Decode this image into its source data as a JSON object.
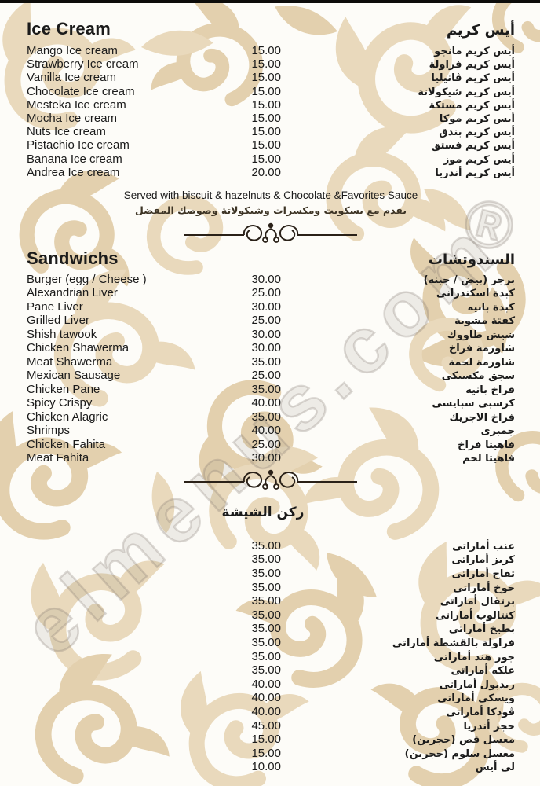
{
  "page": {
    "background_color": "#fdfcf8",
    "pattern_color": "#e7d5b4",
    "text_color": "#1b1b1b"
  },
  "watermark": {
    "text": "elmenus.com",
    "registered_mark": "®"
  },
  "sections": [
    {
      "title_en": "Ice Cream",
      "title_ar": "أيس كريم",
      "items": [
        {
          "en": "Mango Ice cream",
          "price": "15.00",
          "ar": "أيس كريم مانجو"
        },
        {
          "en": "Strawberry Ice cream",
          "price": "15.00",
          "ar": "أيس كريم فراولة"
        },
        {
          "en": "Vanilla Ice cream",
          "price": "15.00",
          "ar": "أيس كريم ڤانيليا"
        },
        {
          "en": "Chocolate Ice cream",
          "price": "15.00",
          "ar": "أيس كريم شيكولاتة"
        },
        {
          "en": "Mesteka Ice cream",
          "price": "15.00",
          "ar": "أيس كريم مستكة"
        },
        {
          "en": "Mocha Ice cream",
          "price": "15.00",
          "ar": "أيس كريم موكا"
        },
        {
          "en": "Nuts Ice cream",
          "price": "15.00",
          "ar": "أيس كريم بندق"
        },
        {
          "en": "Pistachio Ice cream",
          "price": "15.00",
          "ar": "أيس كريم فستق"
        },
        {
          "en": "Banana Ice cream",
          "price": "15.00",
          "ar": "أيس كريم موز"
        },
        {
          "en": "Andrea Ice cream",
          "price": "20.00",
          "ar": "أيس كريم أندريا"
        }
      ],
      "note_en": "Served with biscuit & hazelnuts & Chocolate &Favorites Sauce",
      "note_ar": "يقدم مع بسكويت ومكسرات وشيكولاتة وصوصك المفضل"
    },
    {
      "title_en": "Sandwichs",
      "title_ar": "السندوتشات",
      "items": [
        {
          "en": "Burger (egg / Cheese )",
          "price": "30.00",
          "ar": "برجر (بيض / جبنه)"
        },
        {
          "en": "Alexandrian Liver",
          "price": "25.00",
          "ar": "كبدة اسكندرانى"
        },
        {
          "en": "Pane Liver",
          "price": "30.00",
          "ar": "كبدة بانيه"
        },
        {
          "en": "Grilled Liver",
          "price": "25.00",
          "ar": "كفتة مشوية"
        },
        {
          "en": "Shish tawook",
          "price": "30.00",
          "ar": "شيش طاووك"
        },
        {
          "en": "Chicken Shawerma",
          "price": "30.00",
          "ar": "شاورمة فراخ"
        },
        {
          "en": "Meat Shawerma",
          "price": "35.00",
          "ar": "شاورمة لحمة"
        },
        {
          "en": "Mexican Sausage",
          "price": "25.00",
          "ar": "سجق مكسيكى"
        },
        {
          "en": "Chicken Pane",
          "price": "35.00",
          "ar": "فراخ بانيه"
        },
        {
          "en": "Spicy Crispy",
          "price": "40.00",
          "ar": "كرسبى سبايسى"
        },
        {
          "en": "Chicken Alagric",
          "price": "35.00",
          "ar": "فراخ الاجريك"
        },
        {
          "en": "Shrimps",
          "price": "40.00",
          "ar": "جمبرى"
        },
        {
          "en": "Chicken Fahita",
          "price": "25.00",
          "ar": "فاهيتا فراخ"
        },
        {
          "en": "Meat Fahita",
          "price": "30.00",
          "ar": "فاهيتا لحم"
        }
      ]
    },
    {
      "title_ar": "ركن الشيشة",
      "items": [
        {
          "price": "35.00",
          "ar": "عنب أماراتى"
        },
        {
          "price": "35.00",
          "ar": "كريز أماراتى"
        },
        {
          "price": "35.00",
          "ar": "تفاح أماراتى"
        },
        {
          "price": "35.00",
          "ar": "خوخ أماراتى"
        },
        {
          "price": "35.00",
          "ar": "برتقال أماراتى"
        },
        {
          "price": "35.00",
          "ar": "كنتالوب أماراتى"
        },
        {
          "price": "35.00",
          "ar": "بطيخ أماراتى"
        },
        {
          "price": "35.00",
          "ar": "فراولة بالقشطة أماراتى"
        },
        {
          "price": "35.00",
          "ar": "جوز هند أماراتى"
        },
        {
          "price": "35.00",
          "ar": "علكه أماراتى"
        },
        {
          "price": "40.00",
          "ar": "ريدبول أماراتى"
        },
        {
          "price": "40.00",
          "ar": "ويسكى أماراتى"
        },
        {
          "price": "40.00",
          "ar": "ڤودكا أماراتى"
        },
        {
          "price": "45.00",
          "ar": "حجر أندريا"
        },
        {
          "price": "15.00",
          "ar": "معسل قص (حجرين)"
        },
        {
          "price": "15.00",
          "ar": "معسل سلوم (حجرين)"
        },
        {
          "price": "10.00",
          "ar": "لى أيس"
        }
      ]
    }
  ]
}
